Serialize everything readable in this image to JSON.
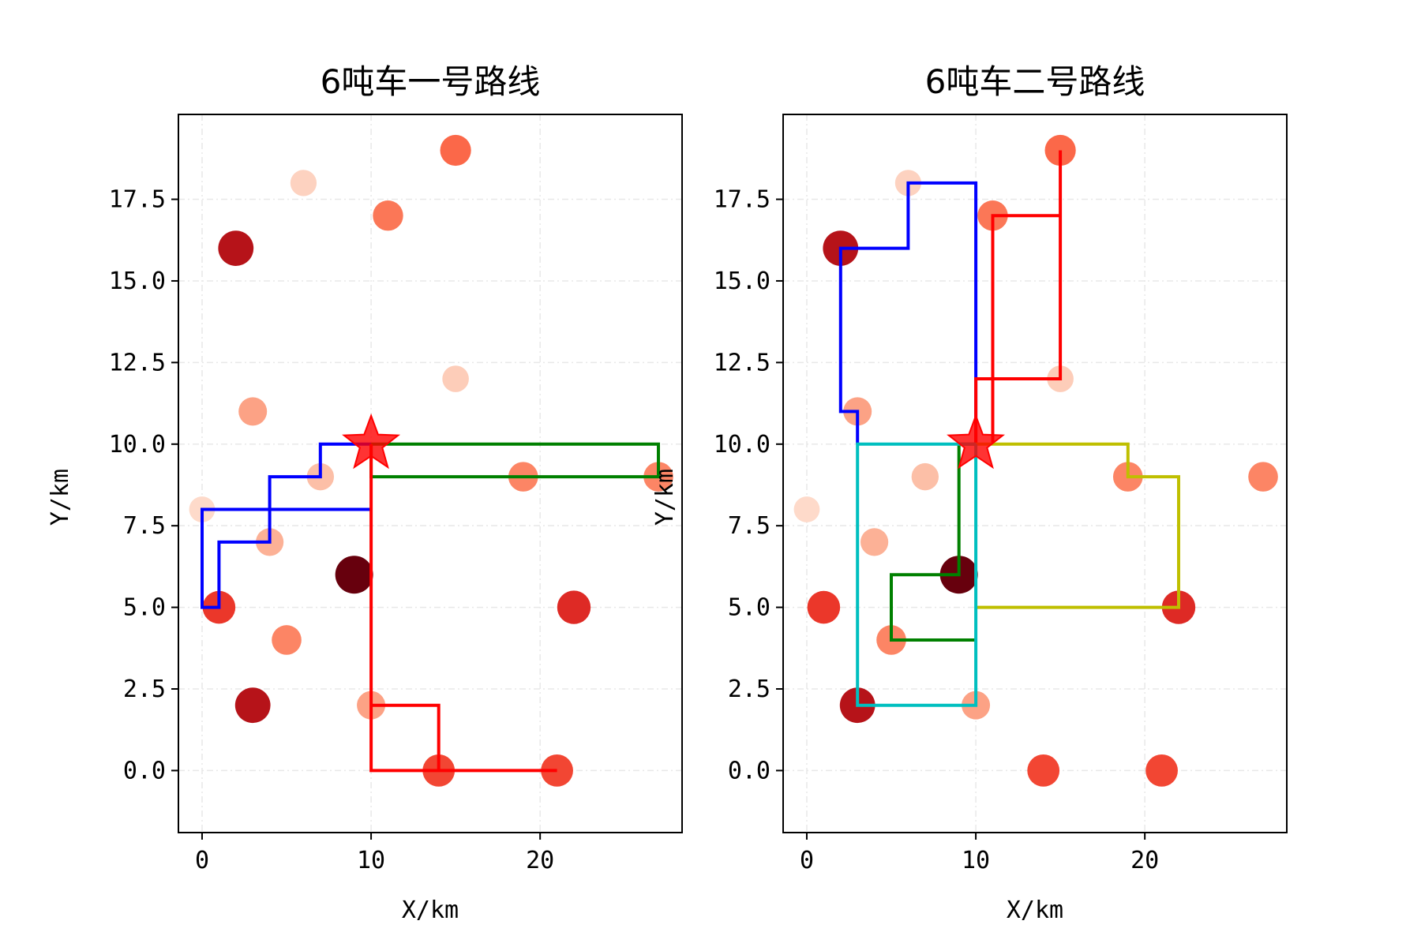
{
  "colors": {
    "depot_star": "#ff0000",
    "grid": "#e8e8e8",
    "customer_cmap": "Reds"
  },
  "chart_data": [
    {
      "type": "scatter",
      "title": "6吨车一号路线",
      "xlabel": "X/km",
      "ylabel": "Y/km",
      "xlim": [
        -1.4,
        28.4
      ],
      "ylim": [
        -1.9,
        20.1
      ],
      "xticks": [
        0,
        10,
        20
      ],
      "yticks": [
        0,
        2.5,
        5,
        7.5,
        10,
        12.5,
        15,
        17.5
      ],
      "ytick_labels": [
        "0.0",
        "2.5",
        "5.0",
        "7.5",
        "10.0",
        "12.5",
        "15.0",
        "17.5"
      ],
      "grid": true,
      "depot": {
        "x": 10,
        "y": 10
      },
      "customers": [
        {
          "x": 15,
          "y": 19,
          "demand": 0.45
        },
        {
          "x": 6,
          "y": 18,
          "demand": 0.08
        },
        {
          "x": 11,
          "y": 17,
          "demand": 0.4
        },
        {
          "x": 2,
          "y": 16,
          "demand": 0.8
        },
        {
          "x": 15,
          "y": 12,
          "demand": 0.1
        },
        {
          "x": 3,
          "y": 11,
          "demand": 0.25
        },
        {
          "x": 7,
          "y": 9,
          "demand": 0.15
        },
        {
          "x": 19,
          "y": 9,
          "demand": 0.35
        },
        {
          "x": 27,
          "y": 9,
          "demand": 0.35
        },
        {
          "x": 0,
          "y": 8,
          "demand": 0.05
        },
        {
          "x": 4,
          "y": 7,
          "demand": 0.2
        },
        {
          "x": 9,
          "y": 6,
          "demand": 1.0
        },
        {
          "x": 1,
          "y": 5,
          "demand": 0.6
        },
        {
          "x": 22,
          "y": 5,
          "demand": 0.65
        },
        {
          "x": 5,
          "y": 4,
          "demand": 0.35
        },
        {
          "x": 3,
          "y": 2,
          "demand": 0.8
        },
        {
          "x": 10,
          "y": 2,
          "demand": 0.25
        },
        {
          "x": 14,
          "y": 0,
          "demand": 0.55
        },
        {
          "x": 21,
          "y": 0,
          "demand": 0.55
        }
      ],
      "routes": [
        {
          "color": "#0000ff",
          "points": [
            [
              10,
              8
            ],
            [
              0,
              8
            ],
            [
              0,
              5
            ],
            [
              1,
              5
            ],
            [
              1,
              7
            ],
            [
              4,
              7
            ],
            [
              4,
              9
            ],
            [
              7,
              9
            ],
            [
              7,
              10
            ],
            [
              10,
              10
            ]
          ]
        },
        {
          "color": "#008000",
          "points": [
            [
              10,
              10
            ],
            [
              27,
              10
            ],
            [
              27,
              9
            ],
            [
              10,
              9
            ],
            [
              10,
              10
            ]
          ]
        },
        {
          "color": "#ff0000",
          "points": [
            [
              10,
              10
            ],
            [
              10,
              0
            ],
            [
              21,
              0
            ],
            [
              14,
              0
            ],
            [
              14,
              2
            ],
            [
              10,
              2
            ]
          ]
        }
      ]
    },
    {
      "type": "scatter",
      "title": "6吨车二号路线",
      "xlabel": "X/km",
      "ylabel": "Y/km",
      "xlim": [
        -1.4,
        28.4
      ],
      "ylim": [
        -1.9,
        20.1
      ],
      "xticks": [
        0,
        10,
        20
      ],
      "yticks": [
        0,
        2.5,
        5,
        7.5,
        10,
        12.5,
        15,
        17.5
      ],
      "ytick_labels": [
        "0.0",
        "2.5",
        "5.0",
        "7.5",
        "10.0",
        "12.5",
        "15.0",
        "17.5"
      ],
      "grid": true,
      "depot": {
        "x": 10,
        "y": 10
      },
      "customers": [
        {
          "x": 15,
          "y": 19,
          "demand": 0.45
        },
        {
          "x": 6,
          "y": 18,
          "demand": 0.08
        },
        {
          "x": 11,
          "y": 17,
          "demand": 0.4
        },
        {
          "x": 2,
          "y": 16,
          "demand": 0.8
        },
        {
          "x": 15,
          "y": 12,
          "demand": 0.1
        },
        {
          "x": 3,
          "y": 11,
          "demand": 0.25
        },
        {
          "x": 7,
          "y": 9,
          "demand": 0.15
        },
        {
          "x": 19,
          "y": 9,
          "demand": 0.35
        },
        {
          "x": 27,
          "y": 9,
          "demand": 0.35
        },
        {
          "x": 0,
          "y": 8,
          "demand": 0.05
        },
        {
          "x": 4,
          "y": 7,
          "demand": 0.2
        },
        {
          "x": 9,
          "y": 6,
          "demand": 1.0
        },
        {
          "x": 1,
          "y": 5,
          "demand": 0.6
        },
        {
          "x": 22,
          "y": 5,
          "demand": 0.65
        },
        {
          "x": 5,
          "y": 4,
          "demand": 0.35
        },
        {
          "x": 3,
          "y": 2,
          "demand": 0.8
        },
        {
          "x": 10,
          "y": 2,
          "demand": 0.25
        },
        {
          "x": 14,
          "y": 0,
          "demand": 0.55
        },
        {
          "x": 21,
          "y": 0,
          "demand": 0.55
        }
      ],
      "routes": [
        {
          "color": "#0000ff",
          "points": [
            [
              3,
              10
            ],
            [
              3,
              11
            ],
            [
              2,
              11
            ],
            [
              2,
              16
            ],
            [
              6,
              16
            ],
            [
              6,
              18
            ],
            [
              10,
              18
            ],
            [
              10,
              10
            ]
          ]
        },
        {
          "color": "#ff0000",
          "points": [
            [
              10,
              10
            ],
            [
              10,
              12
            ],
            [
              15,
              12
            ],
            [
              15,
              19
            ],
            [
              15,
              17
            ],
            [
              11,
              17
            ],
            [
              11,
              10
            ]
          ]
        },
        {
          "color": "#bfbf00",
          "points": [
            [
              10,
              10
            ],
            [
              19,
              10
            ],
            [
              19,
              9
            ],
            [
              22,
              9
            ],
            [
              22,
              5
            ],
            [
              10,
              5
            ]
          ]
        },
        {
          "color": "#008000",
          "points": [
            [
              10,
              10
            ],
            [
              9,
              10
            ],
            [
              9,
              6
            ],
            [
              5,
              6
            ],
            [
              5,
              4
            ],
            [
              10,
              4
            ]
          ]
        },
        {
          "color": "#00bfbf",
          "points": [
            [
              10,
              10
            ],
            [
              3,
              10
            ],
            [
              3,
              2
            ],
            [
              10,
              2
            ],
            [
              10,
              10
            ]
          ]
        }
      ]
    }
  ]
}
